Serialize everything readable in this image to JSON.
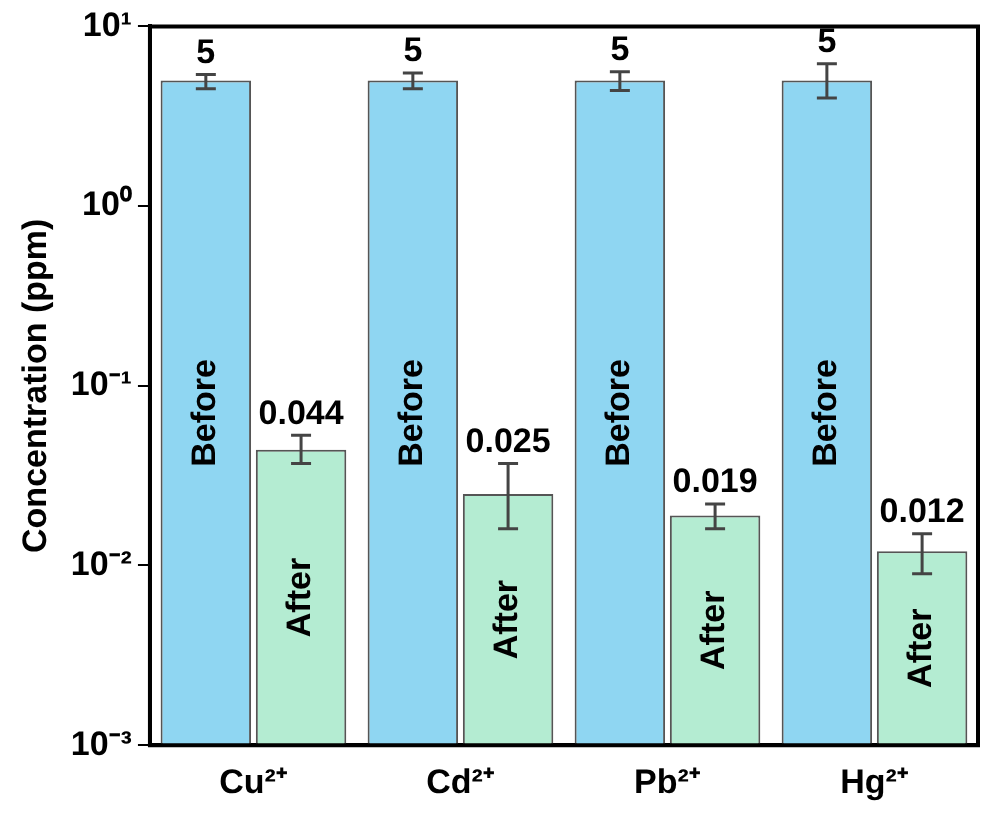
{
  "chart_data": {
    "type": "bar",
    "ylabel": "Concentration (ppm)",
    "categories": [
      "Cu²⁺",
      "Cd²⁺",
      "Pb²⁺",
      "Hg²⁺"
    ],
    "series": [
      {
        "name": "Before",
        "color": "#8fd6f2",
        "values": [
          5,
          5,
          5,
          5
        ],
        "errors": [
          [
            4.5,
            5.4
          ],
          [
            4.5,
            5.5
          ],
          [
            4.4,
            5.6
          ],
          [
            4.0,
            6.2
          ]
        ]
      },
      {
        "name": "After",
        "color": "#b4ecd2",
        "values": [
          0.044,
          0.025,
          0.019,
          0.012
        ],
        "errors": [
          [
            0.037,
            0.053
          ],
          [
            0.016,
            0.037
          ],
          [
            0.016,
            0.022
          ],
          [
            0.009,
            0.015
          ]
        ]
      }
    ],
    "log": "y",
    "ylim": [
      0.001,
      10
    ],
    "yticks": [
      {
        "value": 0.001,
        "label": "10⁻³"
      },
      {
        "value": 0.01,
        "label": "10⁻²"
      },
      {
        "value": 0.1,
        "label": "10⁻¹"
      },
      {
        "value": 1,
        "label": "10⁰"
      },
      {
        "value": 10,
        "label": "10¹"
      }
    ],
    "data_labels": true,
    "legend": false,
    "grid": false
  }
}
